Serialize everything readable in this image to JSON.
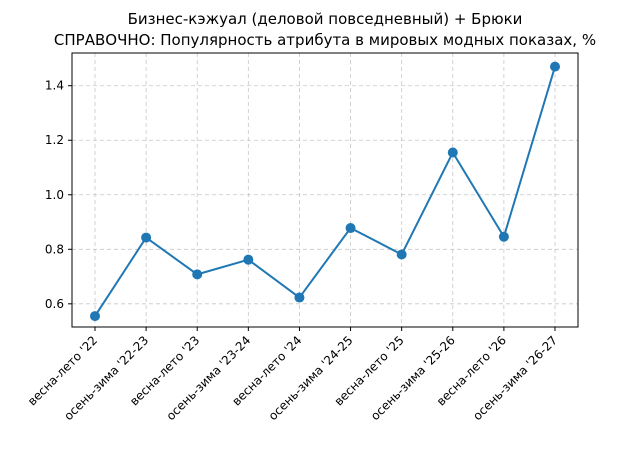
{
  "chart_data": {
    "type": "line",
    "title": "Бизнес-кэжуал (деловой повседневный) + Брюки",
    "subtitle": "СПРАВОЧНО: Популярность атрибута в мировых модных показах, %",
    "xlabel": "",
    "ylabel": "",
    "categories": [
      "весна-лето '22",
      "осень-зима '22-23",
      "весна-лето '23",
      "осень-зима '23-24",
      "весна-лето '24",
      "осень-зима '24-25",
      "весна-лето '25",
      "осень-зима '25-26",
      "весна-лето '26",
      "осень-зима '26-27"
    ],
    "series": [
      {
        "values": [
          0.555,
          0.843,
          0.708,
          0.762,
          0.623,
          0.878,
          0.781,
          1.155,
          0.846,
          1.47
        ],
        "color": "#1f77b4"
      }
    ],
    "ylim": [
      0.515,
      1.52
    ],
    "yticks": [
      0.6,
      0.8,
      1.0,
      1.2,
      1.4
    ],
    "ytick_labels": [
      "0.6",
      "0.8",
      "1.0",
      "1.2",
      "1.4"
    ],
    "grid": true,
    "legend": "none"
  }
}
